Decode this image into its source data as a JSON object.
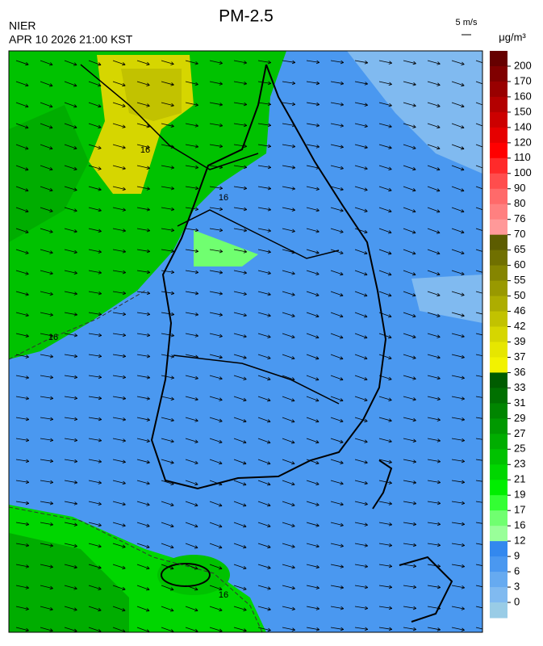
{
  "title": "PM-2.5",
  "agency": "NIER",
  "timestamp": "APR 10 2026 21:00 KST",
  "wind_scale_label": "5 m/s",
  "unit": "μg/m³",
  "contour_labels": [
    16,
    16,
    16,
    16
  ],
  "colorbar": {
    "ticks": [
      200,
      170,
      160,
      150,
      140,
      120,
      110,
      100,
      90,
      80,
      76,
      70,
      65,
      60,
      55,
      50,
      46,
      42,
      39,
      37,
      36,
      33,
      31,
      29,
      27,
      25,
      23,
      21,
      19,
      17,
      16,
      12,
      9,
      6,
      3,
      0
    ],
    "colors": [
      "#660000",
      "#800000",
      "#990000",
      "#b30000",
      "#cc0000",
      "#e60000",
      "#ff0000",
      "#ff2a2a",
      "#ff4d4d",
      "#ff6a6a",
      "#ff8080",
      "#ff9999",
      "#5c5c00",
      "#707000",
      "#858500",
      "#999900",
      "#adad00",
      "#c2c200",
      "#d6d600",
      "#e6e600",
      "#f2f200",
      "#005c00",
      "#007000",
      "#008500",
      "#009900",
      "#00ad00",
      "#00c200",
      "#00d600",
      "#00ee00",
      "#33ff33",
      "#70ff70",
      "#99ff99",
      "#3388ee",
      "#4a98f0",
      "#66aaf0",
      "#80baf0",
      "#99cce6"
    ]
  }
}
